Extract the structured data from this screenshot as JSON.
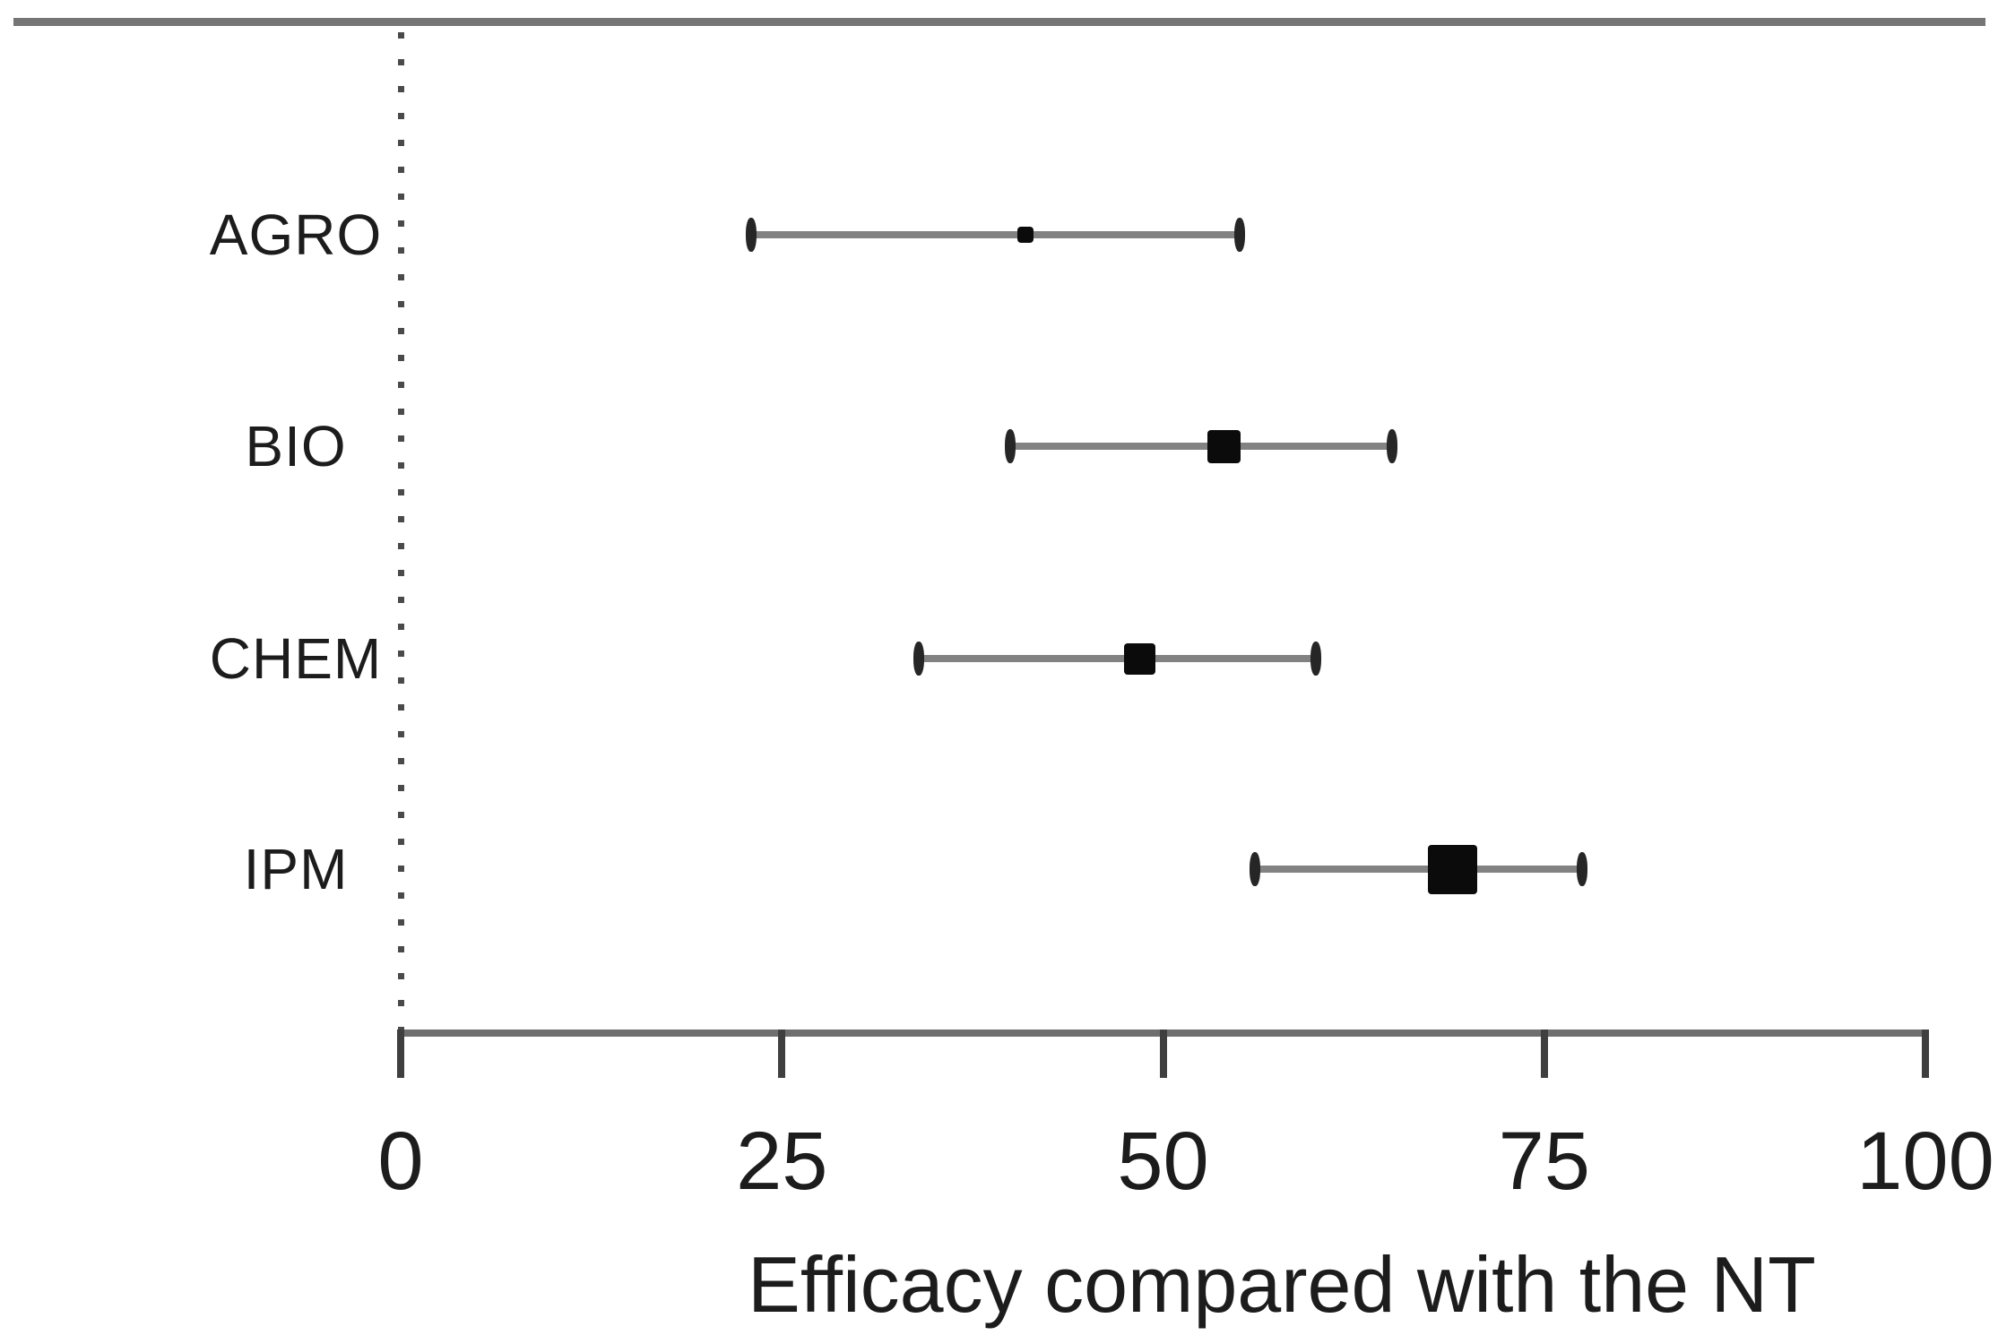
{
  "figure": {
    "background": "#ffffff"
  },
  "chart_data": {
    "type": "scatter",
    "subtype": "forest-plot-dot-whisker",
    "title": "",
    "xlabel": "Efficacy compared with the NT",
    "ylabel": "",
    "xlim": [
      0,
      100
    ],
    "x_ticks": [
      "0",
      "25",
      "50",
      "75",
      "100"
    ],
    "x_tick_values": [
      0,
      25,
      50,
      75,
      100
    ],
    "grid": "off",
    "legend_position": "none",
    "zero_reference_line": {
      "x": 0,
      "style": "dotted-vertical"
    },
    "categories": [
      "AGRO",
      "BIO",
      "CHEM",
      "IPM"
    ],
    "series": [
      {
        "name": "AGRO",
        "mean": 41,
        "ci_low": 23,
        "ci_high": 55,
        "marker_size_px": 18
      },
      {
        "name": "BIO",
        "mean": 54,
        "ci_low": 40,
        "ci_high": 65,
        "marker_size_px": 37
      },
      {
        "name": "CHEM",
        "mean": 48.5,
        "ci_low": 34,
        "ci_high": 60,
        "marker_size_px": 35
      },
      {
        "name": "IPM",
        "mean": 69,
        "ci_low": 56,
        "ci_high": 77.5,
        "marker_size_px": 55
      }
    ],
    "colors": {
      "marker": "#0b0b0b",
      "whisker_line": "#828282",
      "whisker_cap": "#262626",
      "axis_line": "#6f6f6f",
      "tick_mark": "#3f3f3f",
      "text": "#1c1c1c",
      "top_rule": "#757575",
      "zero_line_dots": "#4a4a4a"
    }
  }
}
